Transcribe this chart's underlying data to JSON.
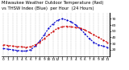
{
  "title_line1": "Milwaukee Weather Outdoor Temperature (Red)",
  "title_line2": "vs THSW Index (Blue)  per Hour  (24 Hours)",
  "hours": [
    0,
    1,
    2,
    3,
    4,
    5,
    6,
    7,
    8,
    9,
    10,
    11,
    12,
    13,
    14,
    15,
    16,
    17,
    18,
    19,
    20,
    21,
    22,
    23
  ],
  "temp_red": [
    28,
    27,
    26,
    25,
    25,
    24,
    25,
    28,
    32,
    38,
    44,
    50,
    55,
    57,
    58,
    57,
    56,
    55,
    52,
    48,
    44,
    40,
    36,
    32
  ],
  "thsw_blue": [
    22,
    21,
    20,
    19,
    18,
    18,
    20,
    26,
    34,
    44,
    55,
    62,
    68,
    70,
    68,
    65,
    60,
    54,
    46,
    38,
    32,
    28,
    26,
    24
  ],
  "red_color": "#cc0000",
  "blue_color": "#0000cc",
  "bg_color": "#ffffff",
  "grid_color": "#888888",
  "ylim_min": 10,
  "ylim_max": 80,
  "yticks": [
    20,
    30,
    40,
    50,
    60,
    70
  ],
  "xtick_labels": [
    "0",
    "1",
    "2",
    "3",
    "4",
    "5",
    "6",
    "7",
    "8",
    "9",
    "10",
    "11",
    "12",
    "1",
    "2",
    "3",
    "4",
    "5",
    "6",
    "7",
    "8",
    "9",
    "10",
    "11"
  ],
  "title_fontsize": 3.8,
  "tick_fontsize": 3.2
}
